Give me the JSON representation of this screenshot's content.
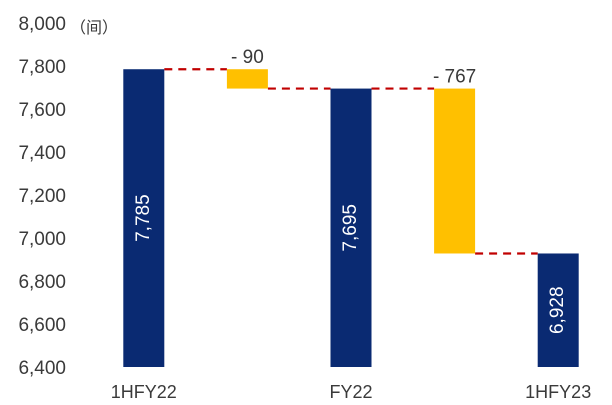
{
  "chart_data": {
    "type": "waterfall",
    "unit_label": "（间）",
    "y_ticks": [
      "6,400",
      "6,600",
      "6,800",
      "7,000",
      "7,200",
      "7,400",
      "7,600",
      "7,800",
      "8,000"
    ],
    "ylim": [
      6400,
      8000
    ],
    "items": [
      {
        "category": "1HFY22",
        "kind": "total",
        "value": 7785,
        "label": "7,785"
      },
      {
        "category": "",
        "kind": "delta",
        "value": -90,
        "label": "- 90"
      },
      {
        "category": "FY22",
        "kind": "total",
        "value": 7695,
        "label": "7,695"
      },
      {
        "category": "",
        "kind": "delta",
        "value": -767,
        "label": "- 767"
      },
      {
        "category": "1HFY23",
        "kind": "total",
        "value": 6928,
        "label": "6,928"
      }
    ],
    "colors": {
      "total": "#0a2a72",
      "delta": "#ffc000",
      "connector": "#c00000"
    },
    "grid": false,
    "legend": "none"
  }
}
